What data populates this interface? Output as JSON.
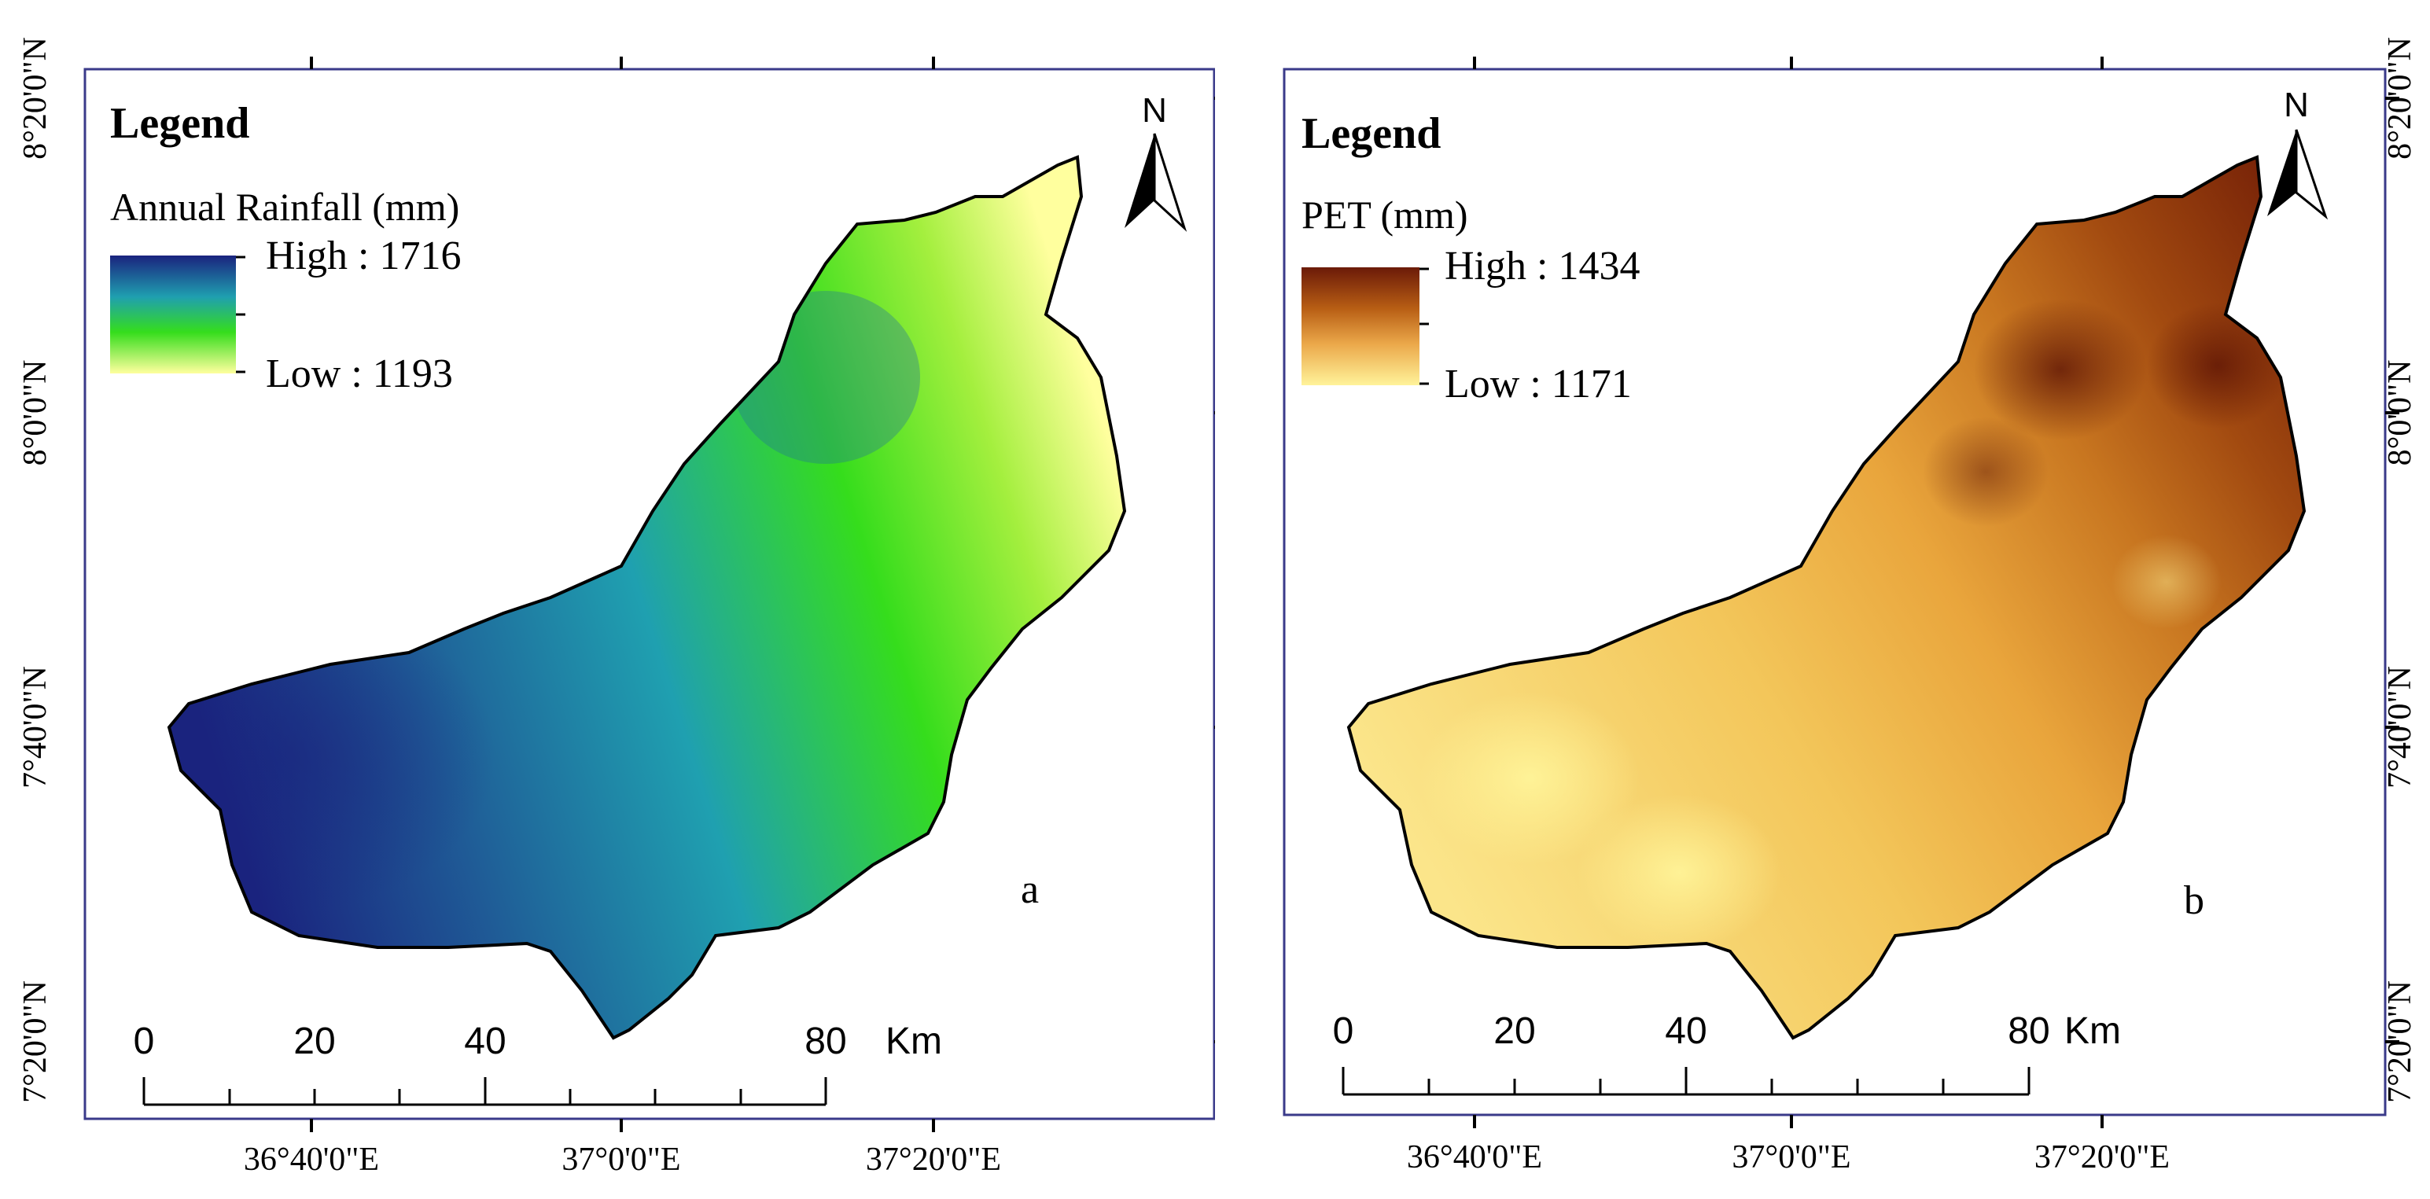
{
  "maps": [
    {
      "id": "a",
      "panel_label": "a",
      "legend_title": "Legend",
      "variable": "Annual Rainfall (mm)",
      "high_label": "High : 1716",
      "low_label": "Low : 1193",
      "high_value": 1716,
      "low_value": 1193,
      "ramp_colors": [
        "#1a237e",
        "#1f9fb0",
        "#35dd1c",
        "#ffff9e"
      ],
      "north_label": "N",
      "scale_ticks": [
        "0",
        "20",
        "40",
        "80"
      ],
      "scale_unit": "Km"
    },
    {
      "id": "b",
      "panel_label": "b",
      "legend_title": "Legend",
      "variable": "PET (mm)",
      "high_label": "High : 1434",
      "low_label": "Low : 1171",
      "high_value": 1434,
      "low_value": 1171,
      "ramp_colors": [
        "#6b1a08",
        "#b85e14",
        "#eba84a",
        "#fff39a"
      ],
      "north_label": "N",
      "scale_ticks": [
        "0",
        "20",
        "40",
        "80"
      ],
      "scale_unit": "Km"
    }
  ],
  "lon_labels": [
    "36°40'0\"E",
    "37°0'0\"E",
    "37°20'0\"E"
  ],
  "lat_labels": [
    "8°20'0\"N",
    "8°0'0\"N",
    "7°40'0\"N",
    "7°20'0\"N"
  ]
}
